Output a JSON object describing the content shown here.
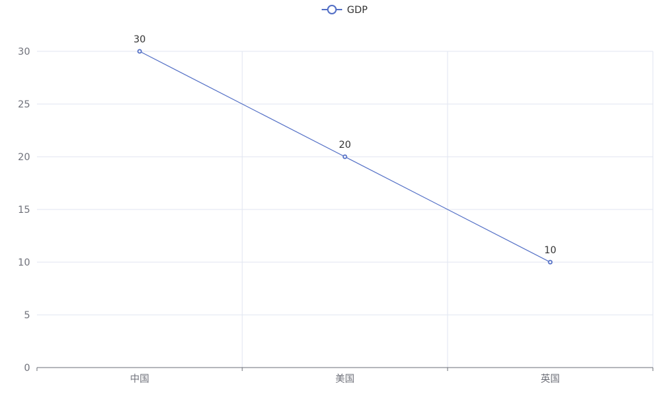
{
  "chart_data": {
    "type": "line",
    "categories": [
      "中国",
      "美国",
      "英国"
    ],
    "series": [
      {
        "name": "GDP",
        "values": [
          30,
          20,
          10
        ],
        "color": "#5470c6"
      }
    ],
    "ylim": [
      0,
      30
    ],
    "yticks": [
      0,
      5,
      10,
      15,
      20,
      25,
      30
    ],
    "grid": true,
    "legend_position": "top-center",
    "show_data_labels": true
  }
}
